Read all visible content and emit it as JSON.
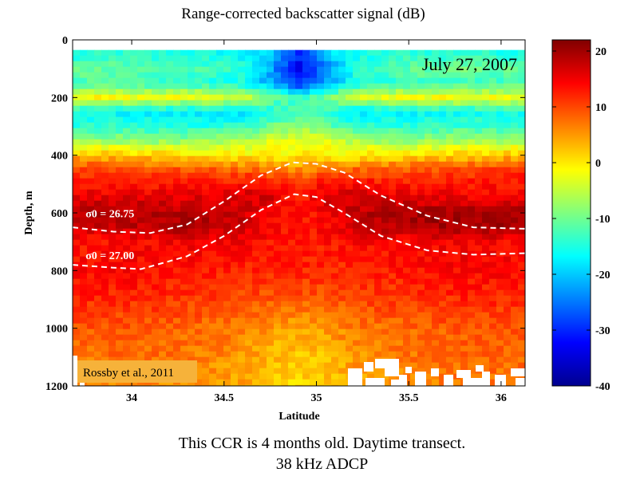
{
  "chart_data": {
    "type": "heatmap",
    "title": "Range-corrected backscatter signal (dB)",
    "xlabel": "Latitude",
    "ylabel": "Depth, m",
    "xlim": [
      33.68,
      36.13
    ],
    "ylim": [
      0,
      1200
    ],
    "y_reversed": true,
    "x_ticks": [
      34,
      34.5,
      35,
      35.5,
      36
    ],
    "x_tick_labels": [
      "34",
      "34.5",
      "35",
      "35.5",
      "36"
    ],
    "y_ticks": [
      0,
      200,
      400,
      600,
      800,
      1000,
      1200
    ],
    "y_tick_labels": [
      "0",
      "200",
      "400",
      "600",
      "800",
      "1000",
      "1200"
    ],
    "colorbar": {
      "range": [
        -40,
        22
      ],
      "ticks": [
        20,
        10,
        0,
        -10,
        -20,
        -30,
        -40
      ],
      "tick_labels": [
        "20",
        "10",
        "0",
        "-10",
        "-20",
        "-30",
        "-40"
      ],
      "colormap": "jet"
    },
    "field": {
      "lat": [
        33.7,
        34.0,
        34.3,
        34.6,
        34.75,
        34.9,
        35.05,
        35.2,
        35.5,
        35.8,
        36.1
      ],
      "depth": [
        50,
        100,
        150,
        200,
        250,
        300,
        350,
        400,
        450,
        500,
        550,
        600,
        650,
        700,
        800,
        900,
        1000,
        1100,
        1200
      ],
      "values": [
        [
          -15,
          -14,
          -15,
          -17,
          -20,
          -30,
          -20,
          -16,
          -14,
          -14,
          -15
        ],
        [
          -10,
          -11,
          -12,
          -14,
          -22,
          -33,
          -25,
          -15,
          -11,
          -10,
          -11
        ],
        [
          -12,
          -13,
          -14,
          -16,
          -22,
          -30,
          -22,
          -16,
          -13,
          -13,
          -13
        ],
        [
          -1,
          -2,
          -2,
          -4,
          -10,
          -14,
          -10,
          -4,
          -2,
          -2,
          -2
        ],
        [
          -16,
          -17,
          -18,
          -18,
          -15,
          -12,
          -14,
          -18,
          -17,
          -16,
          -16
        ],
        [
          -14,
          -14,
          -15,
          -14,
          -10,
          -8,
          -10,
          -14,
          -14,
          -13,
          -14
        ],
        [
          -7,
          -8,
          -8,
          -6,
          -3,
          -2,
          -3,
          -6,
          -8,
          -7,
          -7
        ],
        [
          3,
          2,
          1,
          0,
          -1,
          0,
          -1,
          0,
          1,
          2,
          3
        ],
        [
          11,
          10,
          9,
          8,
          7,
          6,
          7,
          8,
          9,
          10,
          11
        ],
        [
          13,
          13,
          13,
          14,
          14,
          11,
          14,
          14,
          13,
          13,
          13
        ],
        [
          16,
          16,
          16,
          17,
          17,
          12,
          17,
          17,
          16,
          15,
          15
        ],
        [
          19,
          19,
          19,
          17,
          14,
          13,
          14,
          18,
          20,
          20,
          20
        ],
        [
          17,
          18,
          19,
          17,
          14,
          13,
          14,
          17,
          19,
          20,
          20
        ],
        [
          13,
          14,
          15,
          15,
          13,
          13,
          13,
          14,
          14,
          15,
          14
        ],
        [
          14,
          14,
          13,
          12,
          12,
          12,
          12,
          12,
          13,
          14,
          14
        ],
        [
          12,
          12,
          11,
          10,
          9,
          9,
          9,
          10,
          11,
          12,
          12
        ],
        [
          9,
          9,
          8,
          7,
          5,
          4,
          5,
          7,
          8,
          9,
          9
        ],
        [
          7,
          8,
          7,
          5,
          3,
          2,
          3,
          5,
          7,
          8,
          8
        ],
        [
          6,
          6,
          5,
          4,
          2,
          1,
          2,
          4,
          6,
          7,
          7
        ]
      ]
    },
    "isopycnals": [
      {
        "label": "σ0 = 26.75",
        "label_lat": 33.75,
        "label_depth": 615,
        "lat": [
          33.68,
          33.9,
          34.1,
          34.3,
          34.5,
          34.7,
          34.87,
          35.0,
          35.15,
          35.35,
          35.6,
          35.85,
          36.13
        ],
        "depth": [
          650,
          665,
          670,
          640,
          560,
          470,
          425,
          430,
          460,
          540,
          610,
          650,
          655
        ]
      },
      {
        "label": "σ0 = 27.00",
        "label_lat": 33.75,
        "label_depth": 760,
        "lat": [
          33.68,
          33.9,
          34.05,
          34.3,
          34.5,
          34.7,
          34.88,
          35.0,
          35.15,
          35.35,
          35.6,
          35.85,
          36.13
        ],
        "depth": [
          780,
          790,
          795,
          750,
          680,
          590,
          535,
          545,
          600,
          680,
          730,
          745,
          740
        ]
      }
    ],
    "annotations": [
      {
        "text": "July 27, 2007",
        "position": "top-right"
      },
      {
        "text": "Rossby et al., 2011",
        "position": "bottom-left"
      }
    ],
    "caption_lines": [
      "This CCR is 4 months old. Daytime transect.",
      "38 kHz ADCP"
    ]
  }
}
